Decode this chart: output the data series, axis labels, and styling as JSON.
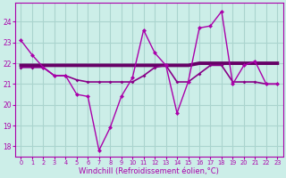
{
  "xlabel": "Windchill (Refroidissement éolien,°C)",
  "background_color": "#cceee8",
  "grid_color": "#aad4ce",
  "line_color": "#aa00aa",
  "line_color2": "#880088",
  "line_color3": "#660066",
  "xlim": [
    -0.5,
    23.5
  ],
  "ylim": [
    17.5,
    24.9
  ],
  "yticks": [
    18,
    19,
    20,
    21,
    22,
    23,
    24
  ],
  "xticks": [
    0,
    1,
    2,
    3,
    4,
    5,
    6,
    7,
    8,
    9,
    10,
    11,
    12,
    13,
    14,
    15,
    16,
    17,
    18,
    19,
    20,
    21,
    22,
    23
  ],
  "series1": [
    23.1,
    22.4,
    21.8,
    21.4,
    21.4,
    20.5,
    20.4,
    17.8,
    18.9,
    20.4,
    21.3,
    23.6,
    22.5,
    21.9,
    19.6,
    21.1,
    23.7,
    23.8,
    24.5,
    21.0,
    21.9,
    22.1,
    21.0,
    21.0
  ],
  "series2": [
    21.8,
    21.8,
    21.8,
    21.4,
    21.4,
    21.2,
    21.1,
    21.1,
    21.1,
    21.1,
    21.1,
    21.4,
    21.8,
    21.9,
    21.1,
    21.1,
    21.5,
    21.9,
    21.9,
    21.1,
    21.1,
    21.1,
    21.0,
    21.0
  ],
  "series3": [
    21.9,
    21.9,
    21.9,
    21.9,
    21.9,
    21.9,
    21.9,
    21.9,
    21.9,
    21.9,
    21.9,
    21.9,
    21.9,
    21.9,
    21.9,
    21.9,
    22.0,
    22.0,
    22.0,
    22.0,
    22.0,
    22.0,
    22.0,
    22.0
  ]
}
